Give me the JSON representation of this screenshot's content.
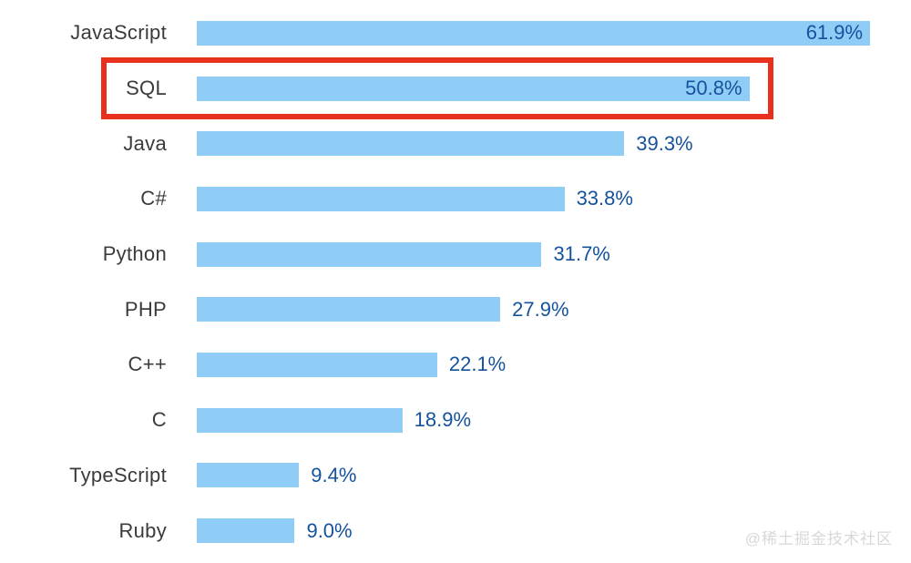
{
  "chart_data": {
    "type": "bar",
    "orientation": "horizontal",
    "title": "",
    "xlabel": "",
    "ylabel": "",
    "categories": [
      "JavaScript",
      "SQL",
      "Java",
      "C#",
      "Python",
      "PHP",
      "C++",
      "C",
      "TypeScript",
      "Ruby"
    ],
    "values": [
      61.9,
      50.8,
      39.3,
      33.8,
      31.7,
      27.9,
      22.1,
      18.9,
      9.4,
      9.0
    ],
    "value_labels": [
      "61.9%",
      "50.8%",
      "39.3%",
      "33.8%",
      "31.7%",
      "27.9%",
      "22.1%",
      "18.9%",
      "9.4%",
      "9.0%"
    ],
    "label_inside_bar": [
      true,
      true,
      false,
      false,
      false,
      false,
      false,
      false,
      false,
      false
    ],
    "highlighted_category": "SQL",
    "xlim": [
      0,
      65
    ],
    "grid": false,
    "legend": false,
    "colors": {
      "bar": "#90cdf6",
      "value_text": "#14529e",
      "category_text": "#3b3b3b",
      "highlight_box": "#e8311c",
      "background": "#ffffff"
    }
  },
  "watermark": {
    "text": "@稀土掘金技术社区",
    "color": "#d8d8d8"
  }
}
